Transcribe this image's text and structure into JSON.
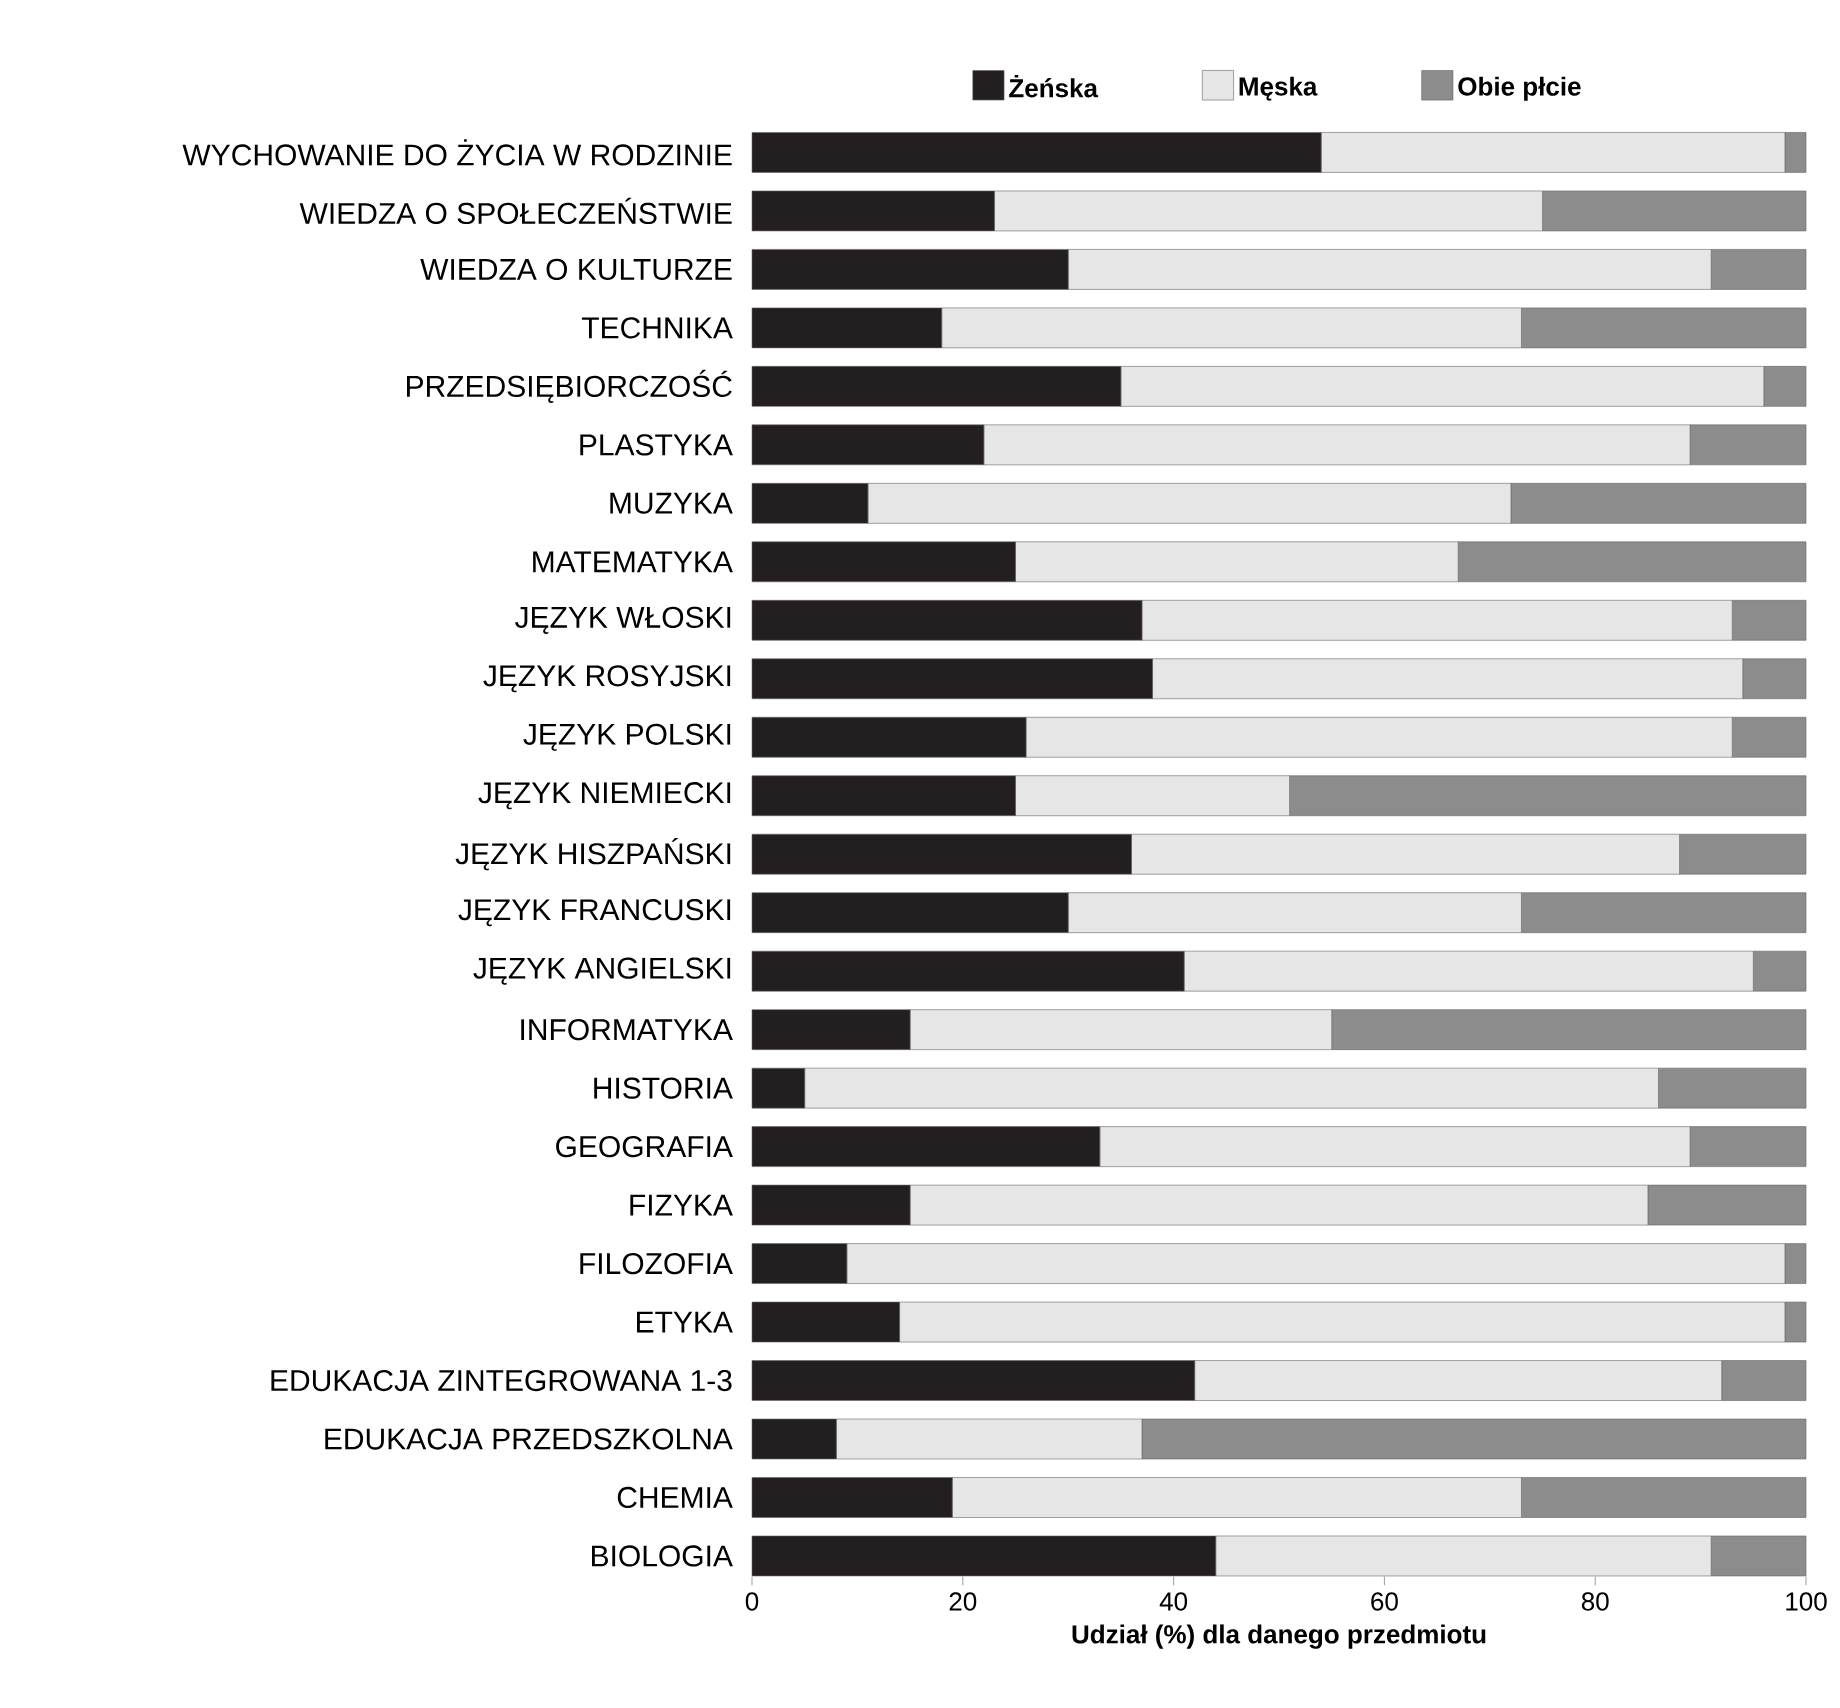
{
  "chart_data": {
    "type": "bar",
    "orientation": "horizontal",
    "stacked": true,
    "categories": [
      "WYCHOWANIE DO ŻYCIA W RODZINIE",
      "WIEDZA O SPOŁECZEŃSTWIE",
      "WIEDZA O KULTURZE",
      "TECHNIKA",
      "PRZEDSIĘBIORCZOŚĆ",
      "PLASTYKA",
      "MUZYKA",
      "MATEMATYKA",
      "JĘZYK WŁOSKI",
      "JĘZYK ROSYJSKI",
      "JĘZYK POLSKI",
      "JĘZYK NIEMIECKI",
      "JĘZYK HISZPAŃSKI",
      "JĘZYK FRANCUSKI",
      "JĘZYK ANGIELSKI",
      "INFORMATYKA",
      "HISTORIA",
      "GEOGRAFIA",
      "FIZYKA",
      "FILOZOFIA",
      "ETYKA",
      "EDUKACJA ZINTEGROWANA 1-3",
      "EDUKACJA PRZEDSZKOLNA",
      "CHEMIA",
      "BIOLOGIA"
    ],
    "series": [
      {
        "name": "Żeńska",
        "color": "#231f20",
        "values": [
          54,
          23,
          30,
          18,
          35,
          22,
          11,
          25,
          37,
          38,
          26,
          25,
          36,
          30,
          41,
          15,
          5,
          33,
          15,
          9,
          14,
          42,
          8,
          19,
          44
        ]
      },
      {
        "name": "Męska",
        "color": "#e6e6e6",
        "values": [
          44,
          52,
          61,
          55,
          61,
          67,
          61,
          42,
          56,
          56,
          67,
          26,
          52,
          43,
          54,
          40,
          81,
          56,
          70,
          89,
          84,
          50,
          29,
          54,
          47
        ]
      },
      {
        "name": "Obie płcie",
        "color": "#8c8c8c",
        "values": [
          2,
          25,
          9,
          27,
          4,
          11,
          28,
          33,
          7,
          6,
          7,
          49,
          12,
          27,
          5,
          45,
          14,
          11,
          15,
          2,
          2,
          8,
          63,
          27,
          9
        ]
      }
    ],
    "xlabel": "Udział (%) dla danego przedmiotu",
    "xlim": [
      0,
      100
    ],
    "xticks": [
      0,
      20,
      40,
      60,
      80,
      100
    ],
    "legend": "top",
    "grid": false
  }
}
